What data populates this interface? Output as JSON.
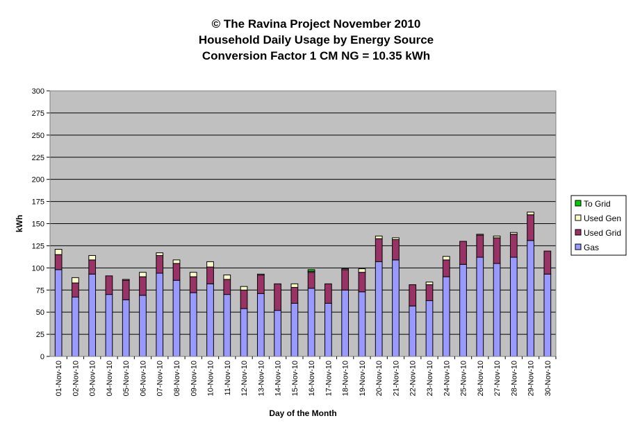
{
  "chart_data": {
    "type": "bar",
    "stacked": true,
    "title": [
      "© The Ravina Project November 2010",
      "Household Daily Usage by Energy Source",
      "Conversion Factor 1 CM NG = 10.35 kWh"
    ],
    "xlabel": "Day of the Month",
    "ylabel": "kWh",
    "ylim": [
      0,
      300
    ],
    "yticks": [
      0,
      25,
      50,
      75,
      100,
      125,
      150,
      175,
      200,
      225,
      250,
      275,
      300
    ],
    "grid": true,
    "legend_position": "right",
    "categories": [
      "01-Nov-10",
      "02-Nov-10",
      "03-Nov-10",
      "04-Nov-10",
      "05-Nov-10",
      "06-Nov-10",
      "07-Nov-10",
      "08-Nov-10",
      "09-Nov-10",
      "10-Nov-10",
      "11-Nov-10",
      "12-Nov-10",
      "13-Nov-10",
      "14-Nov-10",
      "15-Nov-10",
      "16-Nov-10",
      "17-Nov-10",
      "18-Nov-10",
      "19-Nov-10",
      "20-Nov-10",
      "21-Nov-10",
      "22-Nov-10",
      "23-Nov-10",
      "24-Nov-10",
      "25-Nov-10",
      "26-Nov-10",
      "27-Nov-10",
      "28-Nov-10",
      "29-Nov-10",
      "30-Nov-10"
    ],
    "series": [
      {
        "name": "Gas",
        "color": "#9999ff",
        "values": [
          98,
          67,
          93,
          70,
          64,
          69,
          94,
          86,
          72,
          82,
          70,
          54,
          71,
          52,
          60,
          77,
          60,
          75,
          73,
          107,
          109,
          57,
          63,
          90,
          104,
          112,
          105,
          112,
          131,
          93
        ]
      },
      {
        "name": "Used Grid",
        "color": "#993366",
        "values": [
          17,
          16,
          16,
          21,
          22,
          21,
          20,
          19,
          18,
          19,
          17,
          21,
          21,
          30,
          18,
          18,
          22,
          23,
          22,
          26,
          23,
          24,
          18,
          19,
          26,
          25,
          29,
          26,
          29,
          26
        ]
      },
      {
        "name": "Used Gen",
        "color": "#ffffcc",
        "values": [
          6,
          6,
          5,
          0,
          1,
          5,
          3,
          4,
          5,
          6,
          5,
          4,
          1,
          0,
          4,
          1,
          0,
          1,
          4,
          3,
          2,
          0,
          3,
          4,
          0,
          1,
          2,
          2,
          3,
          0
        ]
      },
      {
        "name": "To Grid",
        "color": "#00cc00",
        "values": [
          0,
          0,
          0,
          0,
          0,
          0,
          0,
          0,
          0,
          0,
          0,
          0,
          0,
          0,
          0,
          2,
          0,
          0,
          0,
          0,
          0,
          0,
          0,
          0,
          0,
          0,
          0,
          0,
          0,
          0
        ]
      }
    ],
    "legend_order": [
      "To Grid",
      "Used Gen",
      "Used Grid",
      "Gas"
    ],
    "colors": {
      "plot_background": "#c0c0c0",
      "gridline": "#000000",
      "bar_outline": "#000000"
    }
  }
}
